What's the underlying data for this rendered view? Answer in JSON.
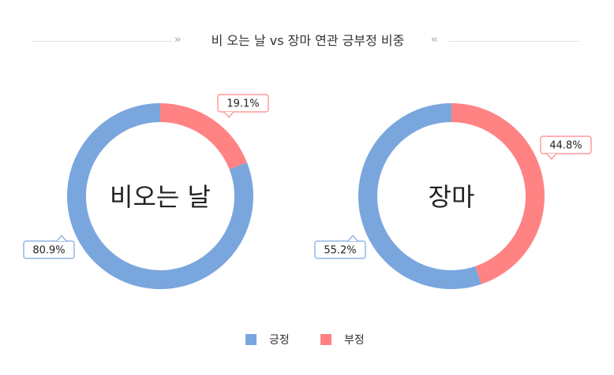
{
  "chart_data": {
    "type": "pie",
    "title": "비 오는 날 vs 장마 연관 긍부정 비중",
    "legend": {
      "position": "bottom-center",
      "entries": [
        {
          "name": "긍정",
          "color": "#7aa6de"
        },
        {
          "name": "부정",
          "color": "#ff8383"
        }
      ]
    },
    "charts": [
      {
        "center_label": "비오는 날",
        "slices": [
          {
            "name": "긍정",
            "value": 80.9,
            "label": "80.9%",
            "color": "#7aa6de"
          },
          {
            "name": "부정",
            "value": 19.1,
            "label": "19.1%",
            "color": "#ff8383"
          }
        ]
      },
      {
        "center_label": "장마",
        "slices": [
          {
            "name": "긍정",
            "value": 55.2,
            "label": "55.2%",
            "color": "#7aa6de"
          },
          {
            "name": "부정",
            "value": 44.8,
            "label": "44.8%",
            "color": "#ff8383"
          }
        ]
      }
    ]
  }
}
